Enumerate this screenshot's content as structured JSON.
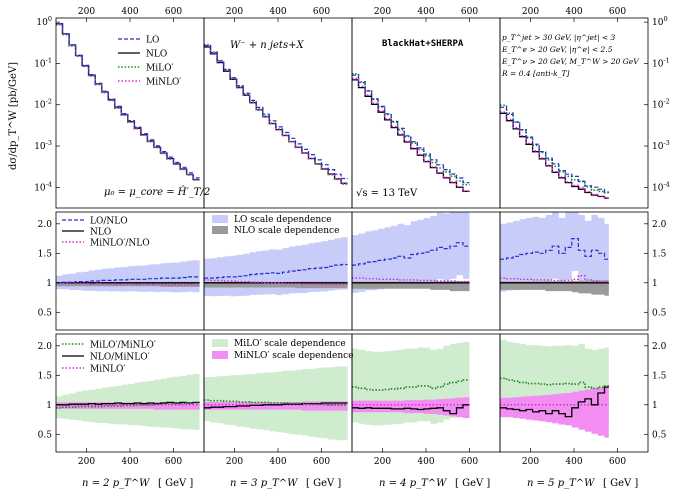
{
  "chart_data": {
    "type": "line",
    "x_unit_label": "[ GeV ]",
    "ylabel_top": "dσ/dp_T^W [pb/GeV]",
    "x_ticks_top": [
      "200",
      "400",
      "600"
    ],
    "y_ticks_top": [
      "10^0",
      "10^-1",
      "10^-2",
      "10^-3",
      "10^-4"
    ],
    "y_ticks_ratio": [
      "2.0",
      "1.5",
      "1",
      "0.5"
    ],
    "top_legend": [
      "LO",
      "NLO",
      "MiLO′",
      "MiNLO′"
    ],
    "mid_legend": [
      "LO/NLO",
      "NLO",
      "MiNLO′/NLO"
    ],
    "mid_band_legend": [
      "LO scale dependence",
      "NLO scale dependence"
    ],
    "bot_legend": [
      "MiLO′/MiNLO′",
      "NLO/MiNLO′",
      "MiNLO′"
    ],
    "bot_band_legend": [
      "MiLO′ scale dependence",
      "MiNLO′ scale dependence"
    ],
    "annotations": {
      "process": "W⁻ + n jets+X",
      "scale": "μ₀ = μ_core = Ĥ′_T/2",
      "generator": "BlackHat+SHERPA",
      "energy": "√s = 13 TeV",
      "cuts": [
        "p_T^jet > 30 GeV, |η^jet| < 3",
        "E_T^e > 20 GeV, |η^e| < 2.5",
        "E_T^ν > 20 GeV, M_T^W > 20 GeV",
        "R = 0.4 [anti-k_T]"
      ]
    },
    "panels": [
      {
        "xlabel": "n = 2 p_T^W",
        "xmax": 720,
        "edges": [
          60,
          90,
          120,
          150,
          180,
          210,
          240,
          270,
          300,
          330,
          360,
          390,
          420,
          450,
          480,
          510,
          540,
          570,
          600,
          630,
          660,
          690,
          720
        ],
        "xs": [
          0.91,
          0.52,
          0.28,
          0.155,
          0.088,
          0.052,
          0.032,
          0.0205,
          0.0132,
          0.0087,
          0.0058,
          0.0039,
          0.0027,
          0.00188,
          0.00132,
          0.00094,
          0.00068,
          0.0005,
          0.00037,
          0.00028,
          0.000205,
          0.000155
        ],
        "lo_ratio": [
          1.0,
          1.01,
          1.01,
          1.02,
          1.02,
          1.03,
          1.03,
          1.04,
          1.04,
          1.05,
          1.05,
          1.06,
          1.06,
          1.06,
          1.07,
          1.07,
          1.08,
          1.08,
          1.08,
          1.09,
          1.1,
          1.1
        ],
        "minlo_ratio": [
          1.0,
          1.0,
          0.99,
          0.99,
          0.99,
          0.98,
          0.99,
          0.98,
          0.98,
          0.97,
          0.98,
          0.98,
          0.97,
          0.98,
          0.97,
          0.98,
          0.97,
          0.96,
          0.97,
          0.96,
          0.97,
          0.96
        ],
        "lo_band": [
          0.2,
          0.22,
          0.24,
          0.26,
          0.28,
          0.3,
          0.32,
          0.33,
          0.34,
          0.35,
          0.36,
          0.37,
          0.38,
          0.39,
          0.4,
          0.41,
          0.42,
          0.43,
          0.44,
          0.45,
          0.46,
          0.47
        ],
        "nlo_band": [
          0.06,
          0.06,
          0.06,
          0.06,
          0.06,
          0.06,
          0.06,
          0.06,
          0.06,
          0.06,
          0.06,
          0.06,
          0.06,
          0.06,
          0.06,
          0.06,
          0.07,
          0.07,
          0.07,
          0.07,
          0.07,
          0.07
        ],
        "milo_ratio": [
          0.95,
          0.96,
          0.96,
          0.97,
          0.97,
          0.97,
          0.97,
          0.98,
          0.98,
          0.98,
          0.99,
          0.99,
          1.0,
          1.0,
          1.0,
          1.01,
          1.01,
          1.02,
          1.02,
          1.02,
          1.03,
          1.03
        ],
        "nlo_minlo_ratio": [
          1.0,
          1.0,
          1.01,
          1.01,
          1.01,
          1.02,
          1.01,
          1.02,
          1.02,
          1.03,
          1.02,
          1.02,
          1.03,
          1.02,
          1.03,
          1.02,
          1.03,
          1.04,
          1.03,
          1.04,
          1.03,
          1.04
        ],
        "milo_band": [
          0.3,
          0.33,
          0.36,
          0.39,
          0.42,
          0.44,
          0.46,
          0.48,
          0.5,
          0.52,
          0.54,
          0.56,
          0.58,
          0.6,
          0.62,
          0.64,
          0.66,
          0.68,
          0.7,
          0.72,
          0.74,
          0.76
        ],
        "minlo_band": [
          0.1,
          0.1,
          0.1,
          0.1,
          0.1,
          0.1,
          0.1,
          0.1,
          0.1,
          0.1,
          0.1,
          0.1,
          0.1,
          0.1,
          0.1,
          0.12,
          0.12,
          0.12,
          0.12,
          0.12,
          0.12,
          0.12
        ]
      },
      {
        "xlabel": "n = 3 p_T^W",
        "xmax": 720,
        "edges": [
          60,
          90,
          120,
          150,
          180,
          210,
          240,
          270,
          300,
          330,
          360,
          390,
          420,
          450,
          480,
          510,
          540,
          570,
          600,
          630,
          660,
          690,
          720
        ],
        "xs": [
          0.25,
          0.17,
          0.105,
          0.065,
          0.041,
          0.026,
          0.017,
          0.0112,
          0.0075,
          0.0051,
          0.0035,
          0.0025,
          0.0018,
          0.00128,
          0.00093,
          0.00068,
          0.0005,
          0.00037,
          0.00028,
          0.00021,
          0.00016,
          0.000125
        ],
        "lo_ratio": [
          1.08,
          1.08,
          1.09,
          1.1,
          1.1,
          1.11,
          1.12,
          1.14,
          1.15,
          1.16,
          1.17,
          1.16,
          1.18,
          1.2,
          1.21,
          1.22,
          1.24,
          1.25,
          1.26,
          1.28,
          1.3,
          1.31
        ],
        "minlo_ratio": [
          1.05,
          1.04,
          1.04,
          1.03,
          1.03,
          1.02,
          1.02,
          1.01,
          1.01,
          1.0,
          1.0,
          1.0,
          0.99,
          0.99,
          0.99,
          0.98,
          0.98,
          0.98,
          0.97,
          0.97,
          0.97,
          0.97
        ],
        "lo_band": [
          0.55,
          0.56,
          0.57,
          0.58,
          0.6,
          0.61,
          0.62,
          0.63,
          0.64,
          0.65,
          0.66,
          0.67,
          0.68,
          0.69,
          0.7,
          0.71,
          0.72,
          0.73,
          0.74,
          0.75,
          0.76,
          0.77
        ],
        "nlo_band": [
          0.08,
          0.08,
          0.08,
          0.08,
          0.08,
          0.08,
          0.08,
          0.08,
          0.08,
          0.08,
          0.08,
          0.08,
          0.08,
          0.08,
          0.09,
          0.09,
          0.09,
          0.09,
          0.09,
          0.09,
          0.09,
          0.09
        ],
        "milo_ratio": [
          1.08,
          1.07,
          1.07,
          1.06,
          1.06,
          1.05,
          1.05,
          1.04,
          1.04,
          1.04,
          1.03,
          1.03,
          1.03,
          1.02,
          1.02,
          1.02,
          1.01,
          1.01,
          1.01,
          1.0,
          1.0,
          1.0
        ],
        "nlo_minlo_ratio": [
          0.95,
          0.96,
          0.96,
          0.97,
          0.97,
          0.98,
          0.98,
          0.99,
          0.99,
          1.0,
          1.0,
          1.0,
          1.01,
          1.01,
          1.01,
          1.02,
          1.02,
          1.02,
          1.03,
          1.03,
          1.03,
          1.03
        ],
        "milo_band": [
          0.6,
          0.62,
          0.64,
          0.66,
          0.68,
          0.7,
          0.72,
          0.74,
          0.76,
          0.78,
          0.8,
          0.82,
          0.84,
          0.86,
          0.88,
          0.9,
          0.92,
          0.94,
          0.96,
          0.98,
          1.0,
          1.0
        ],
        "minlo_band": [
          0.12,
          0.12,
          0.12,
          0.12,
          0.12,
          0.12,
          0.12,
          0.12,
          0.12,
          0.12,
          0.12,
          0.12,
          0.12,
          0.12,
          0.12,
          0.14,
          0.14,
          0.14,
          0.14,
          0.14,
          0.14,
          0.14
        ]
      },
      {
        "xlabel": "n = 4 p_T^W",
        "xmax": 600,
        "edges": [
          60,
          90,
          120,
          150,
          180,
          210,
          240,
          270,
          300,
          330,
          360,
          390,
          420,
          450,
          480,
          510,
          540,
          570,
          600
        ],
        "xs": [
          0.04,
          0.026,
          0.016,
          0.0102,
          0.0066,
          0.0043,
          0.0028,
          0.00185,
          0.00125,
          0.00086,
          0.0006,
          0.00042,
          0.0003,
          0.00022,
          0.00017,
          0.00013,
          0.0001,
          8e-05
        ],
        "lo_ratio": [
          1.3,
          1.32,
          1.35,
          1.36,
          1.38,
          1.4,
          1.42,
          1.45,
          1.42,
          1.48,
          1.5,
          1.52,
          1.55,
          1.6,
          1.58,
          1.62,
          1.68,
          1.62
        ],
        "minlo_ratio": [
          1.08,
          1.08,
          1.07,
          1.07,
          1.06,
          1.06,
          1.06,
          1.05,
          1.05,
          1.05,
          1.04,
          1.04,
          1.04,
          1.03,
          1.03,
          1.03,
          1.02,
          1.02
        ],
        "lo_band": [
          0.85,
          0.86,
          0.87,
          0.88,
          0.89,
          0.9,
          0.91,
          0.92,
          0.93,
          0.94,
          0.95,
          0.96,
          0.97,
          0.98,
          0.99,
          1.0,
          1.0,
          1.0
        ],
        "nlo_band": [
          0.1,
          0.1,
          0.1,
          0.1,
          0.1,
          0.1,
          0.1,
          0.1,
          0.1,
          0.1,
          0.1,
          0.1,
          0.12,
          0.12,
          0.12,
          0.14,
          0.14,
          0.14
        ],
        "milo_ratio": [
          1.3,
          1.28,
          1.26,
          1.25,
          1.25,
          1.26,
          1.27,
          1.28,
          1.3,
          1.3,
          1.32,
          1.32,
          1.28,
          1.3,
          1.35,
          1.38,
          1.4,
          1.42
        ],
        "nlo_minlo_ratio": [
          0.95,
          0.94,
          0.95,
          0.94,
          0.94,
          0.94,
          0.93,
          0.93,
          0.94,
          0.93,
          0.92,
          0.93,
          0.94,
          0.95,
          0.9,
          0.85,
          0.95,
          1.0
        ],
        "milo_band": [
          1.0,
          1.0,
          1.0,
          1.0,
          1.0,
          1.0,
          1.0,
          1.0,
          1.0,
          1.0,
          1.0,
          1.0,
          1.0,
          1.0,
          1.0,
          1.0,
          1.0,
          1.0
        ],
        "minlo_band": [
          0.18,
          0.18,
          0.18,
          0.18,
          0.18,
          0.18,
          0.18,
          0.18,
          0.2,
          0.2,
          0.2,
          0.22,
          0.22,
          0.24,
          0.26,
          0.28,
          0.3,
          0.32
        ]
      },
      {
        "xlabel": "n = 5 p_T^W",
        "xmax": 560,
        "edges": [
          60,
          90,
          120,
          150,
          180,
          210,
          240,
          270,
          300,
          330,
          360,
          390,
          420,
          450,
          480,
          510,
          540,
          560
        ],
        "xs": [
          0.0062,
          0.0041,
          0.0026,
          0.00168,
          0.0011,
          0.00073,
          0.00049,
          0.00033,
          0.00023,
          0.00017,
          0.00013,
          0.000105,
          9e-05,
          7.5e-05,
          6.5e-05,
          6e-05,
          5.5e-05
        ],
        "lo_ratio": [
          1.4,
          1.42,
          1.45,
          1.48,
          1.5,
          1.52,
          1.5,
          1.55,
          1.62,
          1.5,
          1.6,
          1.75,
          1.55,
          1.45,
          1.55,
          1.5,
          1.4
        ],
        "minlo_ratio": [
          1.08,
          1.07,
          1.07,
          1.06,
          1.06,
          1.05,
          1.05,
          1.05,
          1.04,
          1.04,
          1.04,
          1.06,
          1.12,
          1.05,
          1.03,
          1.02,
          1.02
        ],
        "lo_band": [
          1.0,
          1.0,
          1.0,
          1.0,
          1.0,
          1.0,
          1.0,
          1.0,
          1.0,
          1.0,
          1.0,
          1.0,
          1.0,
          1.0,
          1.0,
          1.0,
          1.0
        ],
        "nlo_band": [
          0.12,
          0.12,
          0.12,
          0.12,
          0.12,
          0.12,
          0.12,
          0.14,
          0.14,
          0.14,
          0.14,
          0.16,
          0.18,
          0.18,
          0.2,
          0.2,
          0.22
        ],
        "milo_ratio": [
          1.45,
          1.42,
          1.4,
          1.38,
          1.36,
          1.36,
          1.35,
          1.34,
          1.35,
          1.35,
          1.36,
          1.35,
          1.38,
          1.3,
          1.28,
          1.3,
          1.32
        ],
        "nlo_minlo_ratio": [
          0.95,
          0.93,
          0.92,
          0.9,
          0.92,
          0.88,
          0.9,
          0.85,
          0.9,
          0.85,
          0.8,
          0.95,
          1.05,
          1.1,
          1.0,
          1.2,
          1.3
        ],
        "milo_band": [
          1.0,
          1.0,
          1.0,
          1.0,
          1.0,
          1.0,
          1.0,
          1.0,
          1.0,
          1.0,
          1.0,
          1.0,
          1.0,
          1.0,
          1.0,
          1.0,
          1.0
        ],
        "minlo_band": [
          0.3,
          0.3,
          0.32,
          0.34,
          0.36,
          0.38,
          0.4,
          0.42,
          0.45,
          0.48,
          0.5,
          0.55,
          0.6,
          0.65,
          0.7,
          0.75,
          0.8
        ]
      }
    ]
  },
  "colors": {
    "lo": "#1f2fd0",
    "nlo": "#000000",
    "milo": "#1e8a1e",
    "minlo": "#e020e0",
    "lo_band": "#c8ccf8",
    "nlo_band": "#9a9a9a",
    "milo_band": "#cfeccf",
    "minlo_band": "#f28df2"
  }
}
